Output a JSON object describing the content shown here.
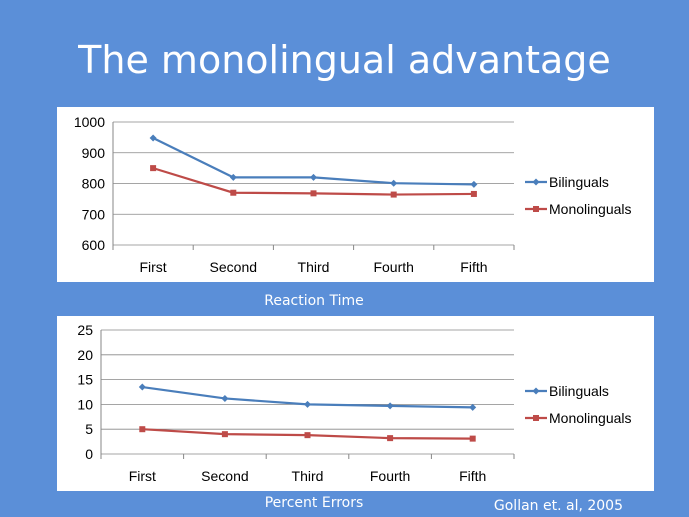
{
  "slide": {
    "title": "The monolingual advantage",
    "caption_top": "Reaction Time",
    "caption_bottom": "Percent Errors",
    "citation": "Gollan et. al, 2005"
  },
  "colors": {
    "background": "#5b8fd8",
    "bilinguals": "#4a7ebb",
    "monolinguals": "#be4b48"
  },
  "chart_data": [
    {
      "type": "line",
      "categories": [
        "First",
        "Second",
        "Third",
        "Fourth",
        "Fifth"
      ],
      "series": [
        {
          "name": "Bilinguals",
          "values": [
            948,
            820,
            820,
            801,
            797
          ]
        },
        {
          "name": "Monolinguals",
          "values": [
            850,
            770,
            768,
            764,
            766
          ]
        }
      ],
      "ylim": [
        600,
        1000
      ],
      "yticks": [
        600,
        700,
        800,
        900,
        1000
      ],
      "grid": true,
      "legend": "right"
    },
    {
      "type": "line",
      "categories": [
        "First",
        "Second",
        "Third",
        "Fourth",
        "Fifth"
      ],
      "series": [
        {
          "name": "Bilinguals",
          "values": [
            13.5,
            11.2,
            10.0,
            9.7,
            9.4
          ]
        },
        {
          "name": "Monolinguals",
          "values": [
            5.0,
            4.0,
            3.8,
            3.2,
            3.1
          ]
        }
      ],
      "ylim": [
        0,
        25
      ],
      "yticks": [
        0,
        5,
        10,
        15,
        20,
        25
      ],
      "grid": true,
      "legend": "right"
    }
  ]
}
